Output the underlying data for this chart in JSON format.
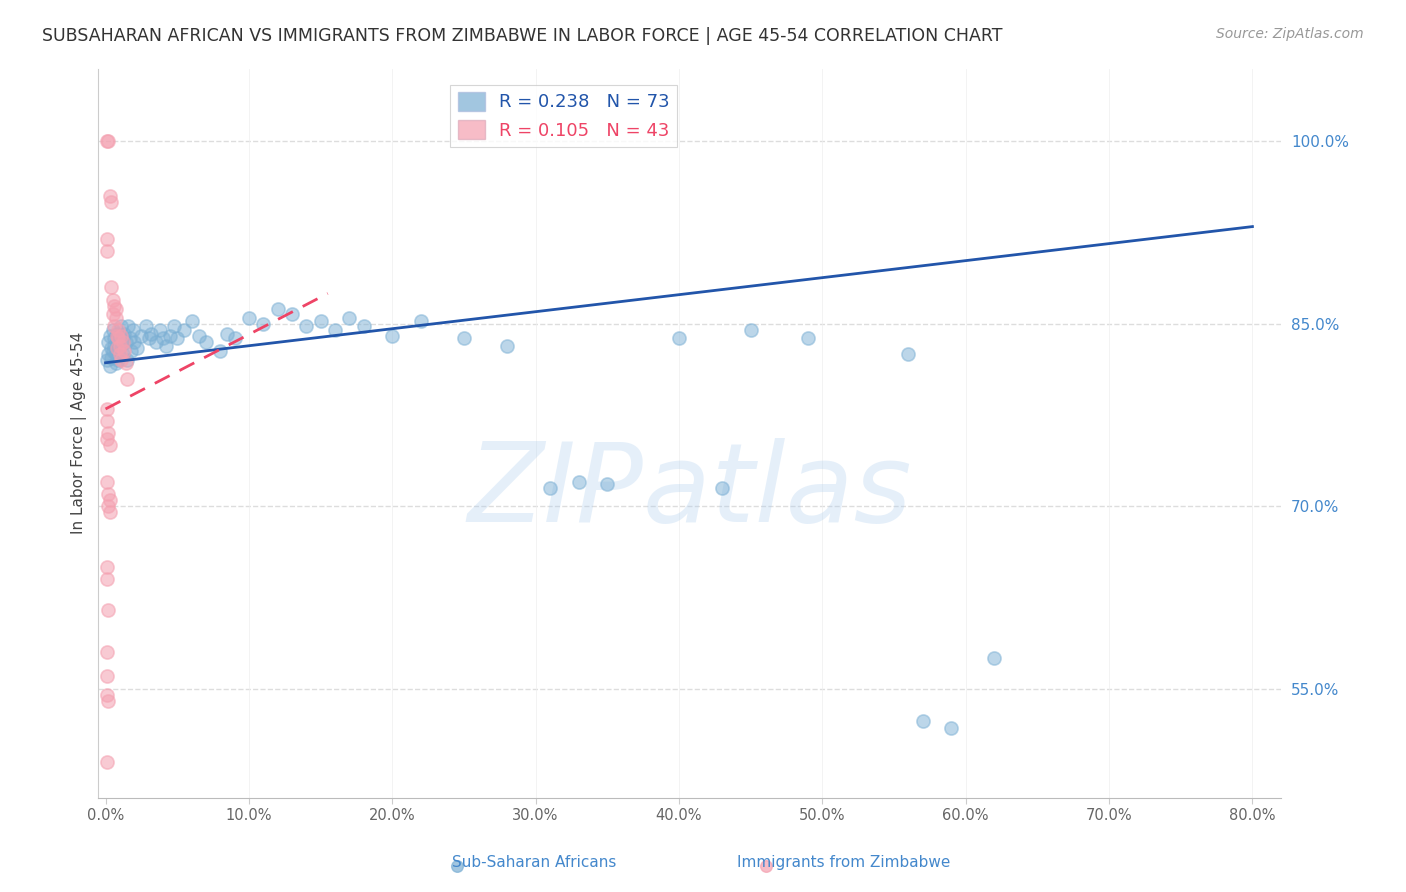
{
  "title": "SUBSAHARAN AFRICAN VS IMMIGRANTS FROM ZIMBABWE IN LABOR FORCE | AGE 45-54 CORRELATION CHART",
  "source": "Source: ZipAtlas.com",
  "ylabel": "In Labor Force | Age 45-54",
  "x_tick_labels": [
    "0.0%",
    "10.0%",
    "20.0%",
    "30.0%",
    "40.0%",
    "50.0%",
    "60.0%",
    "70.0%",
    "80.0%"
  ],
  "x_tick_vals": [
    0.0,
    0.1,
    0.2,
    0.3,
    0.4,
    0.5,
    0.6,
    0.7,
    0.8
  ],
  "y_tick_labels": [
    "55.0%",
    "70.0%",
    "85.0%",
    "100.0%"
  ],
  "y_tick_vals": [
    0.55,
    0.7,
    0.85,
    1.0
  ],
  "xlim": [
    -0.005,
    0.82
  ],
  "ylim": [
    0.46,
    1.06
  ],
  "blue_color": "#7BAFD4",
  "pink_color": "#F4A0B0",
  "blue_line_color": "#2255AA",
  "pink_line_color": "#EE4466",
  "r_blue": 0.238,
  "n_blue": 73,
  "r_pink": 0.105,
  "n_pink": 43,
  "legend_label_blue": "Sub-Saharan Africans",
  "legend_label_pink": "Immigrants from Zimbabwe",
  "watermark": "ZIPatlas",
  "watermark_color": "#AACCEE",
  "title_color": "#333333",
  "axis_label_color": "#444444",
  "tick_label_color_right": "#4488CC",
  "tick_label_color_bottom": "#666666",
  "grid_color": "#DDDDDD",
  "background_color": "#FFFFFF",
  "blue_scatter": [
    [
      0.001,
      0.82
    ],
    [
      0.002,
      0.835
    ],
    [
      0.002,
      0.825
    ],
    [
      0.003,
      0.84
    ],
    [
      0.003,
      0.815
    ],
    [
      0.004,
      0.83
    ],
    [
      0.004,
      0.822
    ],
    [
      0.005,
      0.845
    ],
    [
      0.005,
      0.828
    ],
    [
      0.006,
      0.838
    ],
    [
      0.006,
      0.832
    ],
    [
      0.007,
      0.825
    ],
    [
      0.007,
      0.818
    ],
    [
      0.008,
      0.842
    ],
    [
      0.008,
      0.835
    ],
    [
      0.009,
      0.828
    ],
    [
      0.009,
      0.82
    ],
    [
      0.01,
      0.84
    ],
    [
      0.01,
      0.832
    ],
    [
      0.011,
      0.848
    ],
    [
      0.012,
      0.838
    ],
    [
      0.012,
      0.825
    ],
    [
      0.013,
      0.842
    ],
    [
      0.014,
      0.835
    ],
    [
      0.015,
      0.82
    ],
    [
      0.016,
      0.848
    ],
    [
      0.017,
      0.838
    ],
    [
      0.018,
      0.828
    ],
    [
      0.019,
      0.845
    ],
    [
      0.02,
      0.835
    ],
    [
      0.022,
      0.83
    ],
    [
      0.025,
      0.84
    ],
    [
      0.028,
      0.848
    ],
    [
      0.03,
      0.838
    ],
    [
      0.032,
      0.842
    ],
    [
      0.035,
      0.835
    ],
    [
      0.038,
      0.845
    ],
    [
      0.04,
      0.838
    ],
    [
      0.042,
      0.832
    ],
    [
      0.045,
      0.84
    ],
    [
      0.048,
      0.848
    ],
    [
      0.05,
      0.838
    ],
    [
      0.055,
      0.845
    ],
    [
      0.06,
      0.852
    ],
    [
      0.065,
      0.84
    ],
    [
      0.07,
      0.835
    ],
    [
      0.08,
      0.828
    ],
    [
      0.085,
      0.842
    ],
    [
      0.09,
      0.838
    ],
    [
      0.1,
      0.855
    ],
    [
      0.11,
      0.85
    ],
    [
      0.12,
      0.862
    ],
    [
      0.13,
      0.858
    ],
    [
      0.14,
      0.848
    ],
    [
      0.15,
      0.852
    ],
    [
      0.16,
      0.845
    ],
    [
      0.17,
      0.855
    ],
    [
      0.18,
      0.848
    ],
    [
      0.2,
      0.84
    ],
    [
      0.22,
      0.852
    ],
    [
      0.25,
      0.838
    ],
    [
      0.28,
      0.832
    ],
    [
      0.31,
      0.715
    ],
    [
      0.33,
      0.72
    ],
    [
      0.35,
      0.718
    ],
    [
      0.4,
      0.838
    ],
    [
      0.43,
      0.715
    ],
    [
      0.45,
      0.845
    ],
    [
      0.49,
      0.838
    ],
    [
      0.56,
      0.825
    ],
    [
      0.57,
      0.523
    ],
    [
      0.59,
      0.518
    ],
    [
      0.62,
      0.575
    ]
  ],
  "pink_scatter": [
    [
      0.001,
      1.0
    ],
    [
      0.002,
      1.0
    ],
    [
      0.003,
      0.955
    ],
    [
      0.004,
      0.95
    ],
    [
      0.004,
      0.88
    ],
    [
      0.005,
      0.87
    ],
    [
      0.005,
      0.858
    ],
    [
      0.006,
      0.865
    ],
    [
      0.006,
      0.848
    ],
    [
      0.007,
      0.862
    ],
    [
      0.007,
      0.855
    ],
    [
      0.008,
      0.84
    ],
    [
      0.008,
      0.83
    ],
    [
      0.009,
      0.845
    ],
    [
      0.009,
      0.838
    ],
    [
      0.01,
      0.832
    ],
    [
      0.01,
      0.825
    ],
    [
      0.011,
      0.84
    ],
    [
      0.011,
      0.82
    ],
    [
      0.012,
      0.835
    ],
    [
      0.013,
      0.828
    ],
    [
      0.014,
      0.818
    ],
    [
      0.015,
      0.805
    ],
    [
      0.001,
      0.78
    ],
    [
      0.002,
      0.615
    ],
    [
      0.001,
      0.56
    ],
    [
      0.001,
      0.72
    ],
    [
      0.002,
      0.71
    ],
    [
      0.003,
      0.705
    ],
    [
      0.001,
      0.49
    ],
    [
      0.001,
      0.64
    ],
    [
      0.001,
      0.65
    ],
    [
      0.002,
      0.7
    ],
    [
      0.003,
      0.695
    ],
    [
      0.001,
      0.755
    ],
    [
      0.002,
      0.76
    ],
    [
      0.003,
      0.75
    ],
    [
      0.001,
      0.58
    ],
    [
      0.001,
      0.545
    ],
    [
      0.002,
      0.54
    ],
    [
      0.001,
      0.92
    ],
    [
      0.001,
      0.91
    ],
    [
      0.001,
      0.77
    ]
  ],
  "blue_trend_x": [
    0.0,
    0.8
  ],
  "blue_trend_y": [
    0.818,
    0.93
  ],
  "pink_trend_x": [
    0.0,
    0.155
  ],
  "pink_trend_y": [
    0.78,
    0.875
  ]
}
